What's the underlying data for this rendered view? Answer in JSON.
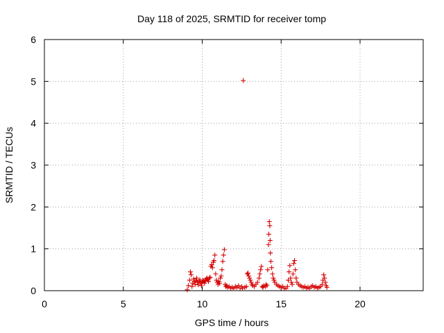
{
  "chart_data": {
    "type": "scatter",
    "title": "Day 118 of 2025, SRMTID for receiver tomp",
    "xlabel": "GPS time / hours",
    "ylabel": "SRMTID / TECUs",
    "xlim": [
      0,
      24
    ],
    "ylim": [
      0,
      6
    ],
    "xticks": [
      0,
      5,
      10,
      15,
      20
    ],
    "yticks": [
      0,
      1,
      2,
      3,
      4,
      5,
      6
    ],
    "grid": true,
    "marker": "+",
    "color": "#d40000",
    "series": [
      {
        "points": [
          [
            9.05,
            0.02
          ],
          [
            9.12,
            0.12
          ],
          [
            9.2,
            0.25
          ],
          [
            9.25,
            0.45
          ],
          [
            9.3,
            0.38
          ],
          [
            9.35,
            0.1
          ],
          [
            9.4,
            0.18
          ],
          [
            9.45,
            0.28
          ],
          [
            9.5,
            0.22
          ],
          [
            9.55,
            0.15
          ],
          [
            9.6,
            0.24
          ],
          [
            9.65,
            0.3
          ],
          [
            9.7,
            0.2
          ],
          [
            9.75,
            0.14
          ],
          [
            9.8,
            0.22
          ],
          [
            9.85,
            0.26
          ],
          [
            9.9,
            0.18
          ],
          [
            9.95,
            0.12
          ],
          [
            10.0,
            0.2
          ],
          [
            10.05,
            0.25
          ],
          [
            10.1,
            0.22
          ],
          [
            10.15,
            0.18
          ],
          [
            10.2,
            0.24
          ],
          [
            10.25,
            0.28
          ],
          [
            10.3,
            0.3
          ],
          [
            10.35,
            0.26
          ],
          [
            10.4,
            0.22
          ],
          [
            10.45,
            0.3
          ],
          [
            10.5,
            0.32
          ],
          [
            10.55,
            0.58
          ],
          [
            10.6,
            0.62
          ],
          [
            10.65,
            0.55
          ],
          [
            10.7,
            0.68
          ],
          [
            10.75,
            0.72
          ],
          [
            10.8,
            0.85
          ],
          [
            10.85,
            0.4
          ],
          [
            10.9,
            0.25
          ],
          [
            10.95,
            0.2
          ],
          [
            11.0,
            0.15
          ],
          [
            11.05,
            0.22
          ],
          [
            11.1,
            0.18
          ],
          [
            11.15,
            0.3
          ],
          [
            11.2,
            0.35
          ],
          [
            11.25,
            0.5
          ],
          [
            11.3,
            0.7
          ],
          [
            11.35,
            0.85
          ],
          [
            11.4,
            0.98
          ],
          [
            11.45,
            0.15
          ],
          [
            11.5,
            0.1
          ],
          [
            11.55,
            0.12
          ],
          [
            11.6,
            0.08
          ],
          [
            11.7,
            0.1
          ],
          [
            11.8,
            0.06
          ],
          [
            11.9,
            0.08
          ],
          [
            12.0,
            0.05
          ],
          [
            12.1,
            0.1
          ],
          [
            12.2,
            0.08
          ],
          [
            12.3,
            0.12
          ],
          [
            12.4,
            0.06
          ],
          [
            12.5,
            0.1
          ],
          [
            12.55,
            0.05
          ],
          [
            12.6,
            5.02
          ],
          [
            12.7,
            0.08
          ],
          [
            12.8,
            0.1
          ],
          [
            12.85,
            0.4
          ],
          [
            12.9,
            0.42
          ],
          [
            12.95,
            0.35
          ],
          [
            13.0,
            0.3
          ],
          [
            13.05,
            0.25
          ],
          [
            13.1,
            0.2
          ],
          [
            13.15,
            0.15
          ],
          [
            13.2,
            0.12
          ],
          [
            13.3,
            0.1
          ],
          [
            13.4,
            0.15
          ],
          [
            13.5,
            0.2
          ],
          [
            13.6,
            0.3
          ],
          [
            13.65,
            0.4
          ],
          [
            13.7,
            0.5
          ],
          [
            13.75,
            0.58
          ],
          [
            13.8,
            0.1
          ],
          [
            13.85,
            0.08
          ],
          [
            13.9,
            0.12
          ],
          [
            14.0,
            0.1
          ],
          [
            14.05,
            0.15
          ],
          [
            14.1,
            0.12
          ],
          [
            14.15,
            0.5
          ],
          [
            14.2,
            1.1
          ],
          [
            14.22,
            1.35
          ],
          [
            14.25,
            1.65
          ],
          [
            14.28,
            1.55
          ],
          [
            14.3,
            1.2
          ],
          [
            14.32,
            0.9
          ],
          [
            14.35,
            0.7
          ],
          [
            14.4,
            0.55
          ],
          [
            14.45,
            0.4
          ],
          [
            14.5,
            0.3
          ],
          [
            14.55,
            0.25
          ],
          [
            14.6,
            0.2
          ],
          [
            14.7,
            0.15
          ],
          [
            14.8,
            0.12
          ],
          [
            14.9,
            0.1
          ],
          [
            15.0,
            0.08
          ],
          [
            15.1,
            0.1
          ],
          [
            15.2,
            0.06
          ],
          [
            15.3,
            0.05
          ],
          [
            15.4,
            0.1
          ],
          [
            15.45,
            0.25
          ],
          [
            15.5,
            0.45
          ],
          [
            15.55,
            0.6
          ],
          [
            15.6,
            0.3
          ],
          [
            15.65,
            0.2
          ],
          [
            15.7,
            0.15
          ],
          [
            15.75,
            0.4
          ],
          [
            15.8,
            0.65
          ],
          [
            15.85,
            0.72
          ],
          [
            15.9,
            0.5
          ],
          [
            15.95,
            0.3
          ],
          [
            16.0,
            0.2
          ],
          [
            16.1,
            0.15
          ],
          [
            16.2,
            0.12
          ],
          [
            16.3,
            0.1
          ],
          [
            16.4,
            0.08
          ],
          [
            16.5,
            0.1
          ],
          [
            16.6,
            0.06
          ],
          [
            16.7,
            0.08
          ],
          [
            16.8,
            0.05
          ],
          [
            16.9,
            0.1
          ],
          [
            17.0,
            0.12
          ],
          [
            17.1,
            0.08
          ],
          [
            17.2,
            0.1
          ],
          [
            17.3,
            0.06
          ],
          [
            17.4,
            0.08
          ],
          [
            17.5,
            0.1
          ],
          [
            17.6,
            0.15
          ],
          [
            17.65,
            0.25
          ],
          [
            17.7,
            0.38
          ],
          [
            17.75,
            0.3
          ],
          [
            17.8,
            0.2
          ],
          [
            17.85,
            0.12
          ],
          [
            17.9,
            0.08
          ]
        ]
      }
    ]
  }
}
